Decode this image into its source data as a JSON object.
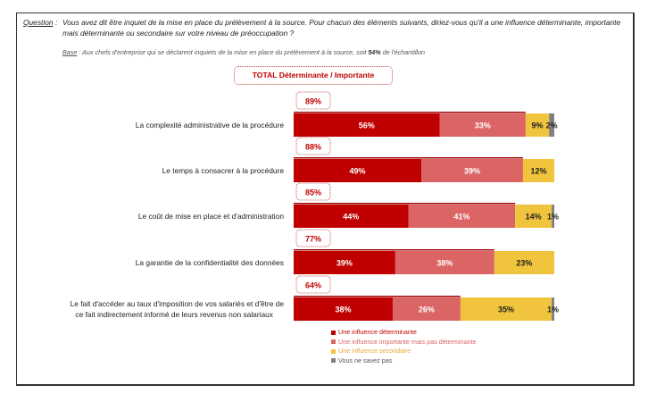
{
  "question": {
    "label": "Question",
    "separator": ":",
    "text": "Vous avez dit être inquiet de la mise en place du prélèvement à la source. Pour chacun des éléments suivants, diriez-vous qu'il a une influence déterminante, importante mais déterminante ou secondaire sur votre niveau de préoccupation ?"
  },
  "base": {
    "label": "Base",
    "text_before": " : Aux chefs d'entreprise qui se déclarent inquiets de la mise en place du prélèvement à la source, soit ",
    "highlight": "54%",
    "text_after": " de l'échantillon"
  },
  "total_header": "TOTAL Déterminante / Importante",
  "colors": {
    "determinante": "#c00000",
    "importante": "#db6464",
    "secondaire": "#f0c43c",
    "ne_sait_pas": "#808080",
    "total_line": "#a00000",
    "total_text": "#c00000"
  },
  "chart_data": {
    "type": "bar",
    "orientation": "horizontal",
    "stacked": true,
    "title": "TOTAL Déterminante / Importante",
    "xlabel": "",
    "ylabel": "",
    "xlim": [
      0,
      100
    ],
    "unit": "%",
    "categories": [
      "La complexité administrative de la procédure",
      "Le temps à consacrer à la procédure",
      "Le coût de mise en place et d'administration",
      "La garantie de la confidentialité des données",
      "Le fait d'accéder au taux d'imposition de vos salariés et d'être de ce fait indirectement informé de leurs revenus non salariaux"
    ],
    "series": [
      {
        "name": "Une influence déterminante",
        "key": "determinante",
        "values": [
          56,
          49,
          44,
          39,
          38
        ]
      },
      {
        "name": "Une influence importante mais pas déterminante",
        "key": "importante",
        "values": [
          33,
          39,
          41,
          38,
          26
        ]
      },
      {
        "name": "Une influence secondaire",
        "key": "secondaire",
        "values": [
          9,
          12,
          14,
          23,
          35
        ]
      },
      {
        "name": "Vous ne savez pas",
        "key": "ne_sait_pas",
        "values": [
          2,
          0,
          1,
          0,
          1
        ]
      }
    ],
    "totals": {
      "label": "TOTAL Déterminante / Importante",
      "values": [
        89,
        88,
        85,
        77,
        64
      ]
    },
    "legend_position": "bottom",
    "grid": false
  },
  "legend": [
    {
      "label": "Une influence déterminante",
      "key": "determinante",
      "text_color": "#c00000"
    },
    {
      "label": "Une influence importante mais pas déterminante",
      "key": "importante",
      "text_color": "#db6464"
    },
    {
      "label": "Une influence secondaire",
      "key": "secondaire",
      "text_color": "#e8a838"
    },
    {
      "label": "Vous ne savez pas",
      "key": "ne_sait_pas",
      "text_color": "#555555"
    }
  ]
}
